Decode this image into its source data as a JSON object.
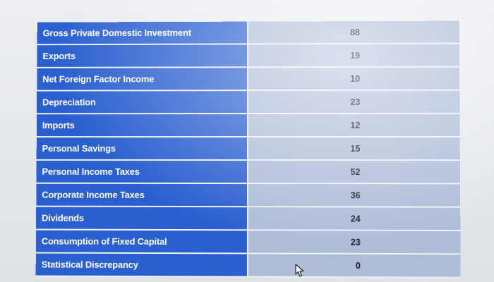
{
  "table": {
    "rows": [
      {
        "label": "Gross Private Domestic Investment",
        "value": "88"
      },
      {
        "label": "Exports",
        "value": "19"
      },
      {
        "label": "Net Foreign Factor Income",
        "value": "10"
      },
      {
        "label": "Depreciation",
        "value": "23"
      },
      {
        "label": "Imports",
        "value": "12"
      },
      {
        "label": "Personal Savings",
        "value": "15"
      },
      {
        "label": "Personal Income Taxes",
        "value": "52"
      },
      {
        "label": "Corporate Income Taxes",
        "value": "36"
      },
      {
        "label": "Dividends",
        "value": "24"
      },
      {
        "label": "Consumption of Fixed Capital",
        "value": "23"
      },
      {
        "label": "Statistical Discrepancy",
        "value": "0"
      }
    ]
  },
  "colors": {
    "label_bg": "#2a5fd0",
    "value_bg": "#aebcd8",
    "label_text": "#ffffff",
    "value_text": "#141a2a"
  },
  "cursor": {
    "icon": "mouse-pointer-icon"
  }
}
